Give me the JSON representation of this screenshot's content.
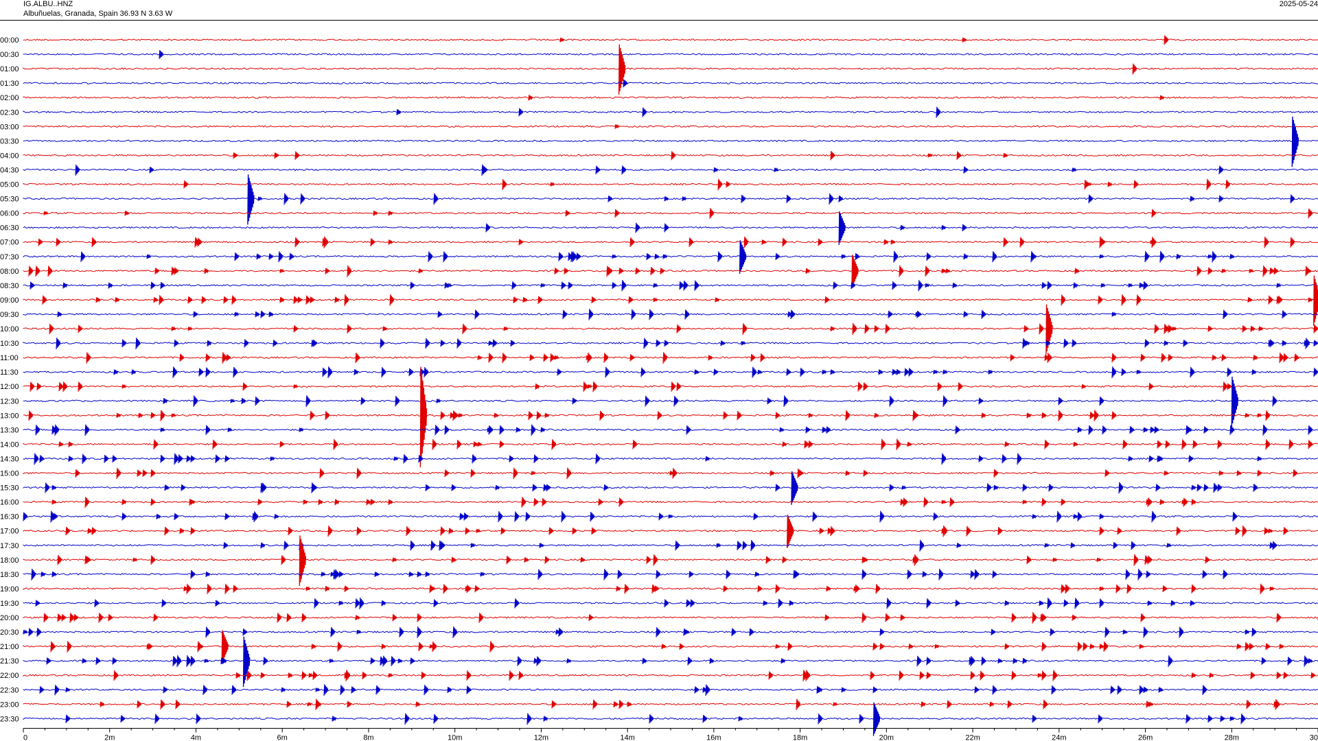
{
  "header": {
    "station": "IG.ALBU..HNZ",
    "location": "Albuñuelas, Granada, Spain  36.93 N 3.63 W",
    "date": "2025-05-24"
  },
  "chart_data": {
    "type": "helicorder",
    "title": "IG.ALBU..HNZ",
    "subtitle": "Albuñuelas, Granada, Spain  36.93 N 3.63 W",
    "xlabel": "",
    "ylabel": "",
    "xlim_minutes": [
      0,
      30
    ],
    "x_ticks": [
      "0",
      "2m",
      "4m",
      "6m",
      "8m",
      "10m",
      "12m",
      "14m",
      "16m",
      "18m",
      "20m",
      "22m",
      "24m",
      "26m",
      "28m",
      "30"
    ],
    "row_labels": [
      "00:00",
      "00:30",
      "01:00",
      "01:30",
      "02:00",
      "02:30",
      "03:00",
      "03:30",
      "04:00",
      "04:30",
      "05:00",
      "05:30",
      "06:00",
      "06:30",
      "07:00",
      "07:30",
      "08:00",
      "08:30",
      "09:00",
      "09:30",
      "10:00",
      "10:30",
      "11:00",
      "11:30",
      "12:00",
      "12:30",
      "13:00",
      "13:30",
      "14:00",
      "14:30",
      "15:00",
      "15:30",
      "16:00",
      "16:30",
      "17:00",
      "17:30",
      "18:00",
      "18:30",
      "19:00",
      "19:30",
      "20:00",
      "20:30",
      "21:00",
      "21:30",
      "22:00",
      "22:30",
      "23:00",
      "23:30"
    ],
    "trace_colors": [
      "#e00000",
      "#0000c8"
    ],
    "notable_events": [
      {
        "row": "01:00",
        "minute": 13.8,
        "amplitude": 3
      },
      {
        "row": "03:30",
        "minute": 29.4,
        "amplitude": 3
      },
      {
        "row": "05:30",
        "minute": 5.2,
        "amplitude": 3
      },
      {
        "row": "06:30",
        "minute": 18.9,
        "amplitude": 2
      },
      {
        "row": "07:30",
        "minute": 16.6,
        "amplitude": 2
      },
      {
        "row": "08:00",
        "minute": 19.2,
        "amplitude": 2
      },
      {
        "row": "09:00",
        "minute": 29.9,
        "amplitude": 3
      },
      {
        "row": "10:00",
        "minute": 23.7,
        "amplitude": 3
      },
      {
        "row": "12:30",
        "minute": 28.0,
        "amplitude": 3
      },
      {
        "row": "13:00",
        "minute": 9.2,
        "amplitude": 6
      },
      {
        "row": "15:30",
        "minute": 17.8,
        "amplitude": 2
      },
      {
        "row": "17:00",
        "minute": 17.7,
        "amplitude": 2
      },
      {
        "row": "18:00",
        "minute": 6.4,
        "amplitude": 3
      },
      {
        "row": "21:00",
        "minute": 4.6,
        "amplitude": 2
      },
      {
        "row": "21:30",
        "minute": 5.1,
        "amplitude": 3
      },
      {
        "row": "23:30",
        "minute": 19.7,
        "amplitude": 2
      }
    ]
  }
}
